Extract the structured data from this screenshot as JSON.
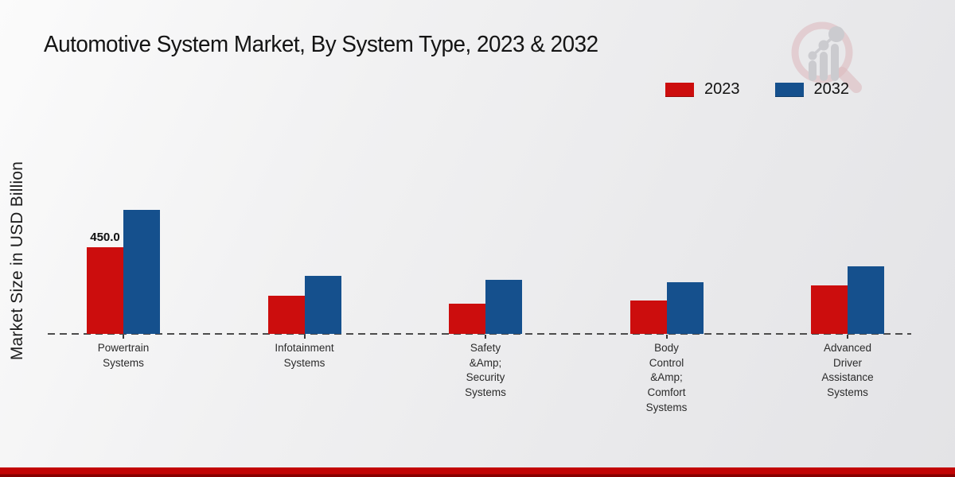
{
  "page": {
    "title": "Automotive System Market, By System Type, 2023 & 2032",
    "ylabel": "Market Size in USD Billion"
  },
  "legend": {
    "items": [
      {
        "label": "2023",
        "color": "#cc0d0d"
      },
      {
        "label": "2032",
        "color": "#15508d"
      }
    ]
  },
  "watermark": {
    "name": "magnifier-growth-chart-logo",
    "ring_color": "#dab3b7",
    "glyph_color": "#c6c6cb"
  },
  "chart_data": {
    "type": "bar",
    "title": "Automotive System Market, By System Type, 2023 & 2032",
    "xlabel": "",
    "ylabel": "Market Size in USD Billion",
    "ylim": [
      0,
      700
    ],
    "grid": false,
    "legend_position": "top-right",
    "baseline_value": 0,
    "categories": [
      "Powertrain Systems",
      "Infotainment Systems",
      "Safety &Amp; Security Systems",
      "Body Control &Amp; Comfort Systems",
      "Advanced Driver Assistance Systems"
    ],
    "category_label_lines": [
      [
        "Powertrain",
        "Systems"
      ],
      [
        "Infotainment",
        "Systems"
      ],
      [
        "Safety",
        "&Amp;",
        "Security",
        "Systems"
      ],
      [
        "Body",
        "Control",
        "&Amp;",
        "Comfort",
        "Systems"
      ],
      [
        "Advanced",
        "Driver",
        "Assistance",
        "Systems"
      ]
    ],
    "series": [
      {
        "name": "2023",
        "color": "#cc0d0d",
        "values": [
          450,
          200,
          155,
          175,
          250
        ]
      },
      {
        "name": "2032",
        "color": "#15508d",
        "values": [
          645,
          300,
          280,
          270,
          350
        ]
      }
    ],
    "data_labels": [
      {
        "series": "2023",
        "category_index": 0,
        "text": "450.0"
      }
    ]
  }
}
